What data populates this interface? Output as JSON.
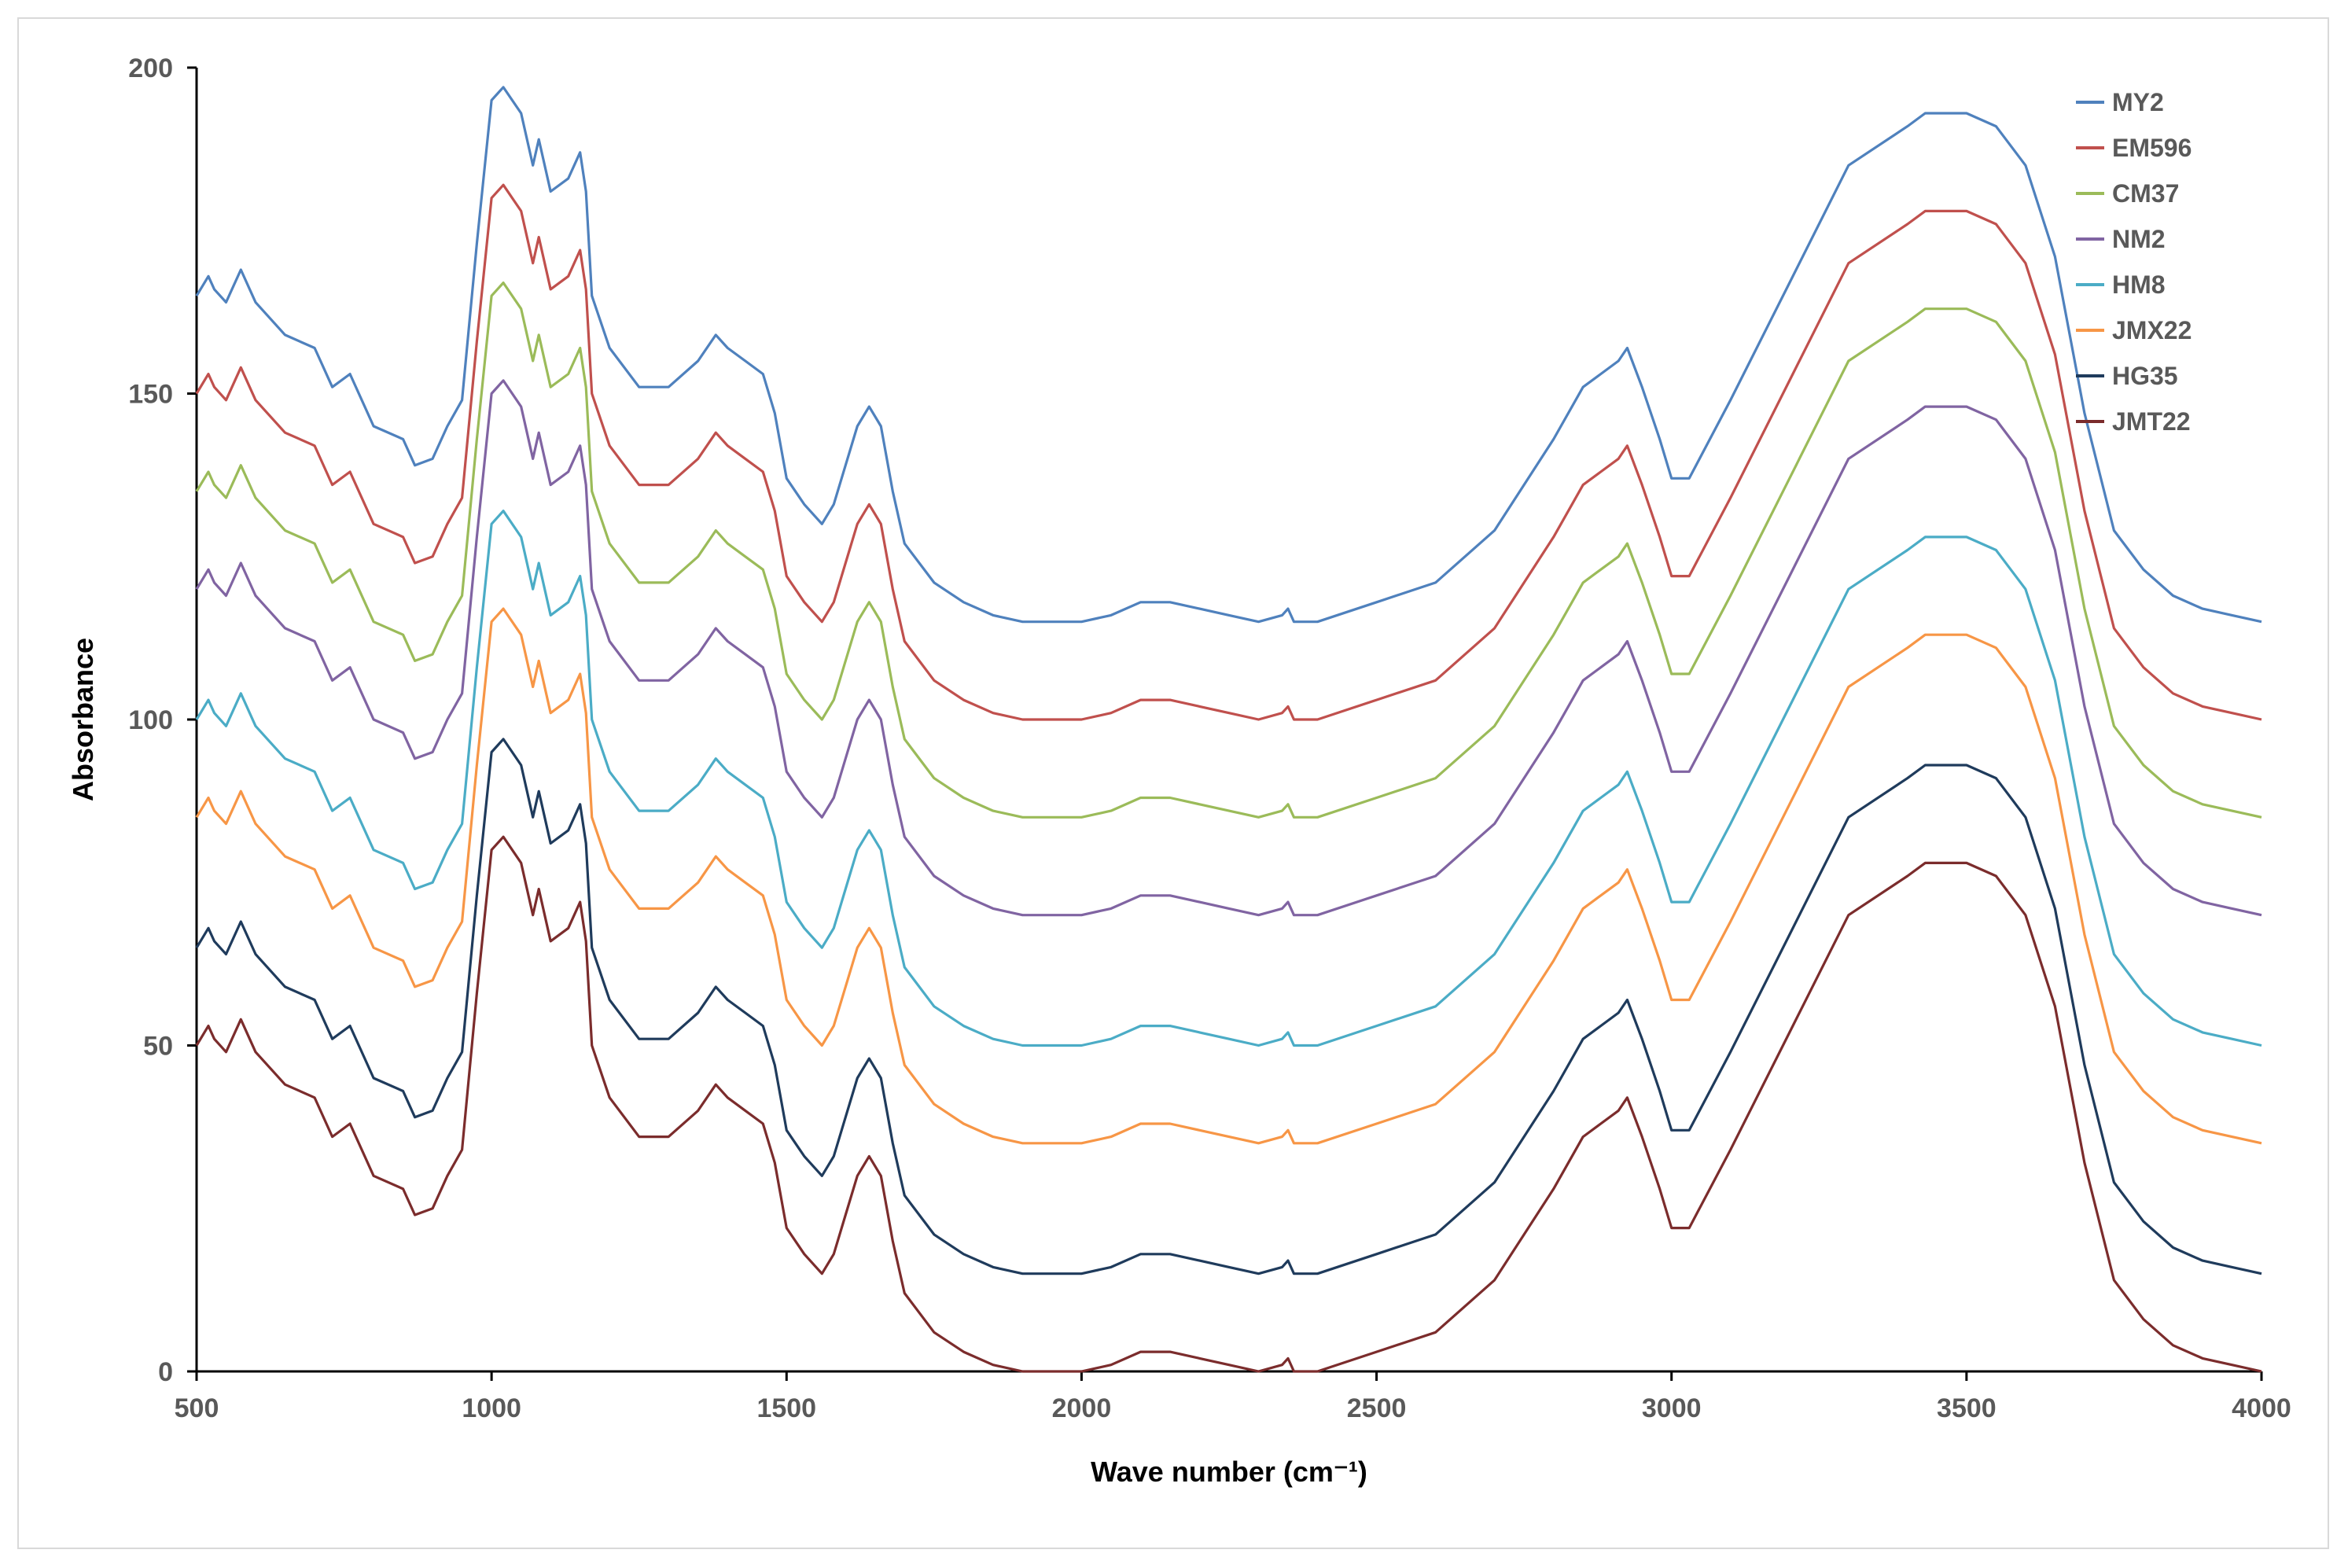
{
  "chart_data": {
    "type": "line",
    "title": "",
    "xlabel": "Wave number (cm⁻¹)",
    "ylabel": "Absorbance",
    "xlim": [
      500,
      4000
    ],
    "ylim": [
      0,
      200
    ],
    "x_ticks": [
      "500",
      "1000",
      "1500",
      "2000",
      "2500",
      "3000",
      "3500",
      "4000"
    ],
    "y_ticks": [
      "0",
      "50",
      "100",
      "150",
      "200"
    ],
    "grid": false,
    "legend_position": "top-right",
    "x": [
      500,
      520,
      530,
      550,
      575,
      600,
      650,
      700,
      710,
      730,
      760,
      800,
      850,
      870,
      900,
      925,
      950,
      975,
      1000,
      1020,
      1050,
      1070,
      1080,
      1100,
      1130,
      1150,
      1160,
      1170,
      1200,
      1250,
      1300,
      1350,
      1380,
      1400,
      1430,
      1460,
      1480,
      1500,
      1530,
      1560,
      1580,
      1600,
      1620,
      1640,
      1660,
      1680,
      1700,
      1750,
      1800,
      1850,
      1900,
      1950,
      2000,
      2050,
      2100,
      2150,
      2200,
      2250,
      2300,
      2340,
      2350,
      2360,
      2400,
      2500,
      2600,
      2700,
      2800,
      2850,
      2880,
      2910,
      2925,
      2950,
      2980,
      3000,
      3030,
      3100,
      3200,
      3300,
      3400,
      3430,
      3500,
      3550,
      3600,
      3650,
      3700,
      3750,
      3800,
      3850,
      3900,
      3950,
      4000
    ],
    "series": [
      {
        "name": "MY2",
        "color": "#4f81bd",
        "offset": 115
      },
      {
        "name": "EM596",
        "color": "#c0504d",
        "offset": 100
      },
      {
        "name": "CM37",
        "color": "#9bbb59",
        "offset": 85
      },
      {
        "name": "NM2",
        "color": "#8064a2",
        "offset": 70
      },
      {
        "name": "HM8",
        "color": "#4bacc6",
        "offset": 50
      },
      {
        "name": "JMX22",
        "color": "#f79646",
        "offset": 35
      },
      {
        "name": "HG35",
        "color": "#1f3b5c",
        "offset": 15
      },
      {
        "name": "JMT22",
        "color": "#7b2c2c",
        "offset": 0
      }
    ],
    "base_profile": [
      50,
      53,
      51,
      49,
      54,
      49,
      44,
      42,
      40,
      36,
      38,
      30,
      28,
      24,
      25,
      30,
      34,
      58,
      80,
      82,
      78,
      70,
      74,
      66,
      68,
      72,
      66,
      50,
      42,
      36,
      36,
      40,
      44,
      42,
      40,
      38,
      32,
      22,
      18,
      15,
      18,
      24,
      30,
      33,
      30,
      20,
      12,
      6,
      3,
      1,
      0,
      0,
      0,
      1,
      3,
      3,
      2,
      1,
      0,
      1,
      2,
      0,
      0,
      3,
      6,
      14,
      28,
      36,
      38,
      40,
      42,
      36,
      28,
      22,
      22,
      34,
      52,
      70,
      76,
      78,
      78,
      76,
      70,
      56,
      32,
      14,
      8,
      4,
      2,
      1,
      0
    ]
  }
}
